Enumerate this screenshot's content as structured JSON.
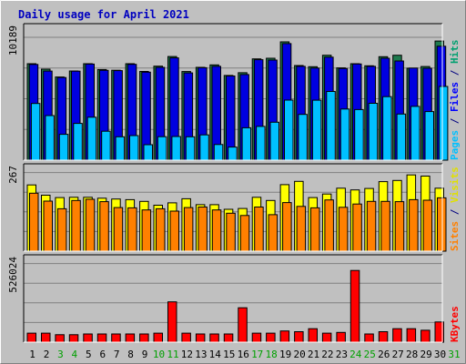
{
  "chart_data": {
    "type": "bar",
    "title": "Daily usage for April 2021",
    "categories": [
      "1",
      "2",
      "3",
      "4",
      "5",
      "6",
      "7",
      "8",
      "9",
      "10",
      "11",
      "12",
      "13",
      "14",
      "15",
      "16",
      "17",
      "18",
      "19",
      "20",
      "21",
      "22",
      "23",
      "24",
      "25",
      "26",
      "27",
      "28",
      "29",
      "30",
      "31"
    ],
    "weekend_days": [
      "3",
      "4",
      "10",
      "11",
      "17",
      "18",
      "24",
      "25",
      "31"
    ],
    "panels": [
      {
        "id": "hits-files-pages",
        "ylabel_parts": [
          {
            "text": "Pages",
            "color": "#00c0ff"
          },
          {
            "text": " / ",
            "color": "#000080"
          },
          {
            "text": "Files",
            "color": "#0000ff"
          },
          {
            "text": " / ",
            "color": "#000080"
          },
          {
            "text": "Hits",
            "color": "#00a070"
          }
        ],
        "ytick_label": "10189",
        "ymax": 10189,
        "series": [
          {
            "name": "Hits",
            "color": "#1e7a4e",
            "values": [
              8000,
              7550,
              6900,
              7400,
              8000,
              7520,
              7460,
              8000,
              7360,
              7800,
              8600,
              7350,
              7700,
              7900,
              7030,
              7250,
              8400,
              8450,
              9810,
              7850,
              7750,
              8700,
              7650,
              8000,
              7830,
              8580,
              8700,
              7620,
              7770,
              9880,
              null
            ]
          },
          {
            "name": "Files",
            "color": "#0000e0",
            "values": [
              7940,
              7390,
              6850,
              7380,
              7970,
              7450,
              7430,
              7950,
              7300,
              7700,
              8480,
              7240,
              7670,
              7780,
              6980,
              7100,
              8330,
              8300,
              9670,
              7780,
              7640,
              8540,
              7600,
              7980,
              7780,
              8450,
              8230,
              7640,
              7620,
              9450,
              null
            ]
          },
          {
            "name": "Pages",
            "color": "#00c0ff",
            "values": [
              4700,
              3700,
              2140,
              3050,
              3560,
              2400,
              1940,
              2040,
              1280,
              1950,
              1960,
              1940,
              2100,
              1300,
              1090,
              2690,
              2800,
              3150,
              4980,
              3800,
              4970,
              5700,
              4240,
              4200,
              4720,
              5270,
              3830,
              4460,
              4030,
              6110,
              null
            ]
          }
        ]
      },
      {
        "id": "visits-sites",
        "ylabel_parts": [
          {
            "text": "Sites",
            "color": "#ff8000"
          },
          {
            "text": " / ",
            "color": "#000080"
          },
          {
            "text": "Visits",
            "color": "#e0e000"
          }
        ],
        "ytick_label": "267",
        "ymax": 267,
        "series": [
          {
            "name": "Visits",
            "color": "#ffff00",
            "values": [
              225,
              190,
              182,
              183,
              183,
              180,
              177,
              175,
              169,
              156,
              164,
              178,
              158,
              158,
              142,
              145,
              183,
              172,
              226,
              237,
              182,
              194,
              214,
              208,
              213,
              236,
              240,
              259,
              255,
              214,
              null
            ]
          },
          {
            "name": "Sites",
            "color": "#ff8000",
            "values": [
              197,
              170,
              144,
              172,
              176,
              168,
              148,
              147,
              140,
              144,
              136,
              148,
              150,
              140,
              129,
              121,
              150,
              124,
              165,
              152,
              147,
              174,
              149,
              160,
              169,
              169,
              168,
              175,
              173,
              181,
              null
            ]
          }
        ]
      },
      {
        "id": "kbytes",
        "ylabel_parts": [
          {
            "text": "KBytes",
            "color": "#ff0000"
          }
        ],
        "ytick_label": "526024",
        "ymax": 526024,
        "series": [
          {
            "name": "KBytes",
            "color": "#ff0000",
            "values": [
              60000,
              60000,
              50000,
              50000,
              55000,
              55000,
              55000,
              55000,
              55000,
              60000,
              270000,
              60000,
              55000,
              55000,
              55000,
              230000,
              60000,
              60000,
              75000,
              70000,
              90000,
              60000,
              65000,
              480000,
              55000,
              70000,
              90000,
              90000,
              80000,
              135000,
              null
            ]
          }
        ]
      }
    ]
  }
}
